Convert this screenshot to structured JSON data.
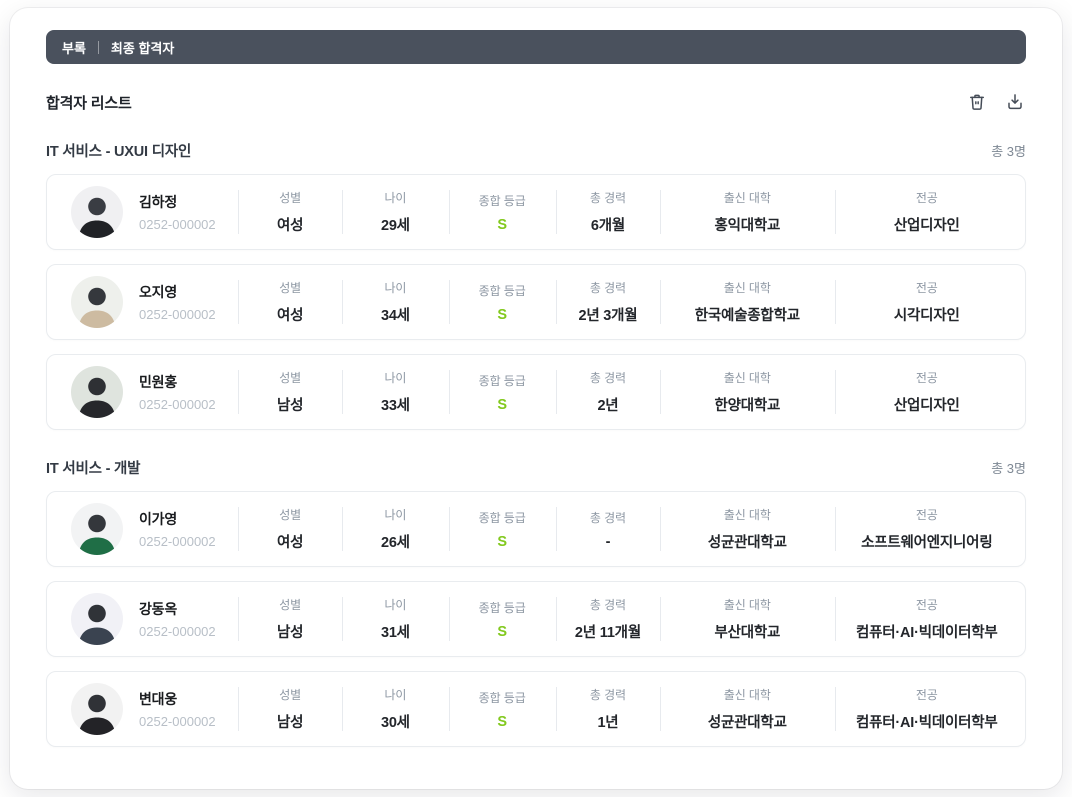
{
  "colors": {
    "topbar_bg": "#4a515d",
    "grade_accent": "#82c91e",
    "label_gray": "#8d97a3",
    "id_gray": "#b8bfc7"
  },
  "topbar": {
    "breadcrumb": "부록",
    "title": "최종 합격자"
  },
  "page": {
    "title": "합격자 리스트"
  },
  "toolbar": {
    "icons": [
      "trash-icon",
      "download-icon"
    ]
  },
  "fields": [
    {
      "key": "gender",
      "label": "성별",
      "grow": 104,
      "accent": false
    },
    {
      "key": "age",
      "label": "나이",
      "grow": 106,
      "accent": false
    },
    {
      "key": "grade",
      "label": "종합 등급",
      "grow": 107,
      "accent": true
    },
    {
      "key": "career",
      "label": "총 경력",
      "grow": 104,
      "accent": false
    },
    {
      "key": "university",
      "label": "출신 대학",
      "grow": 174,
      "accent": false
    },
    {
      "key": "major",
      "label": "전공",
      "grow": 184,
      "accent": false
    }
  ],
  "sections": [
    {
      "title": "IT 서비스 - UXUI 디자인",
      "count": "총 3명",
      "members": [
        {
          "name": "김하정",
          "id": "0252-000002",
          "gender": "여성",
          "age": "29세",
          "grade": "S",
          "career": "6개월",
          "university": "홍익대학교",
          "major": "산업디자인",
          "avatar": {
            "bg": "#f0f0f2",
            "head": "#3a3d43",
            "body": "#202226"
          }
        },
        {
          "name": "오지영",
          "id": "0252-000002",
          "gender": "여성",
          "age": "34세",
          "grade": "S",
          "career": "2년 3개월",
          "university": "한국예술종합학교",
          "major": "시각디자인",
          "avatar": {
            "bg": "#eef0ec",
            "head": "#35383d",
            "body": "#cdbba1"
          }
        },
        {
          "name": "민원홍",
          "id": "0252-000002",
          "gender": "남성",
          "age": "33세",
          "grade": "S",
          "career": "2년",
          "university": "한양대학교",
          "major": "산업디자인",
          "avatar": {
            "bg": "#dfe4de",
            "head": "#2e3034",
            "body": "#26272b"
          }
        }
      ]
    },
    {
      "title": "IT 서비스 - 개발",
      "count": "총 3명",
      "members": [
        {
          "name": "이가영",
          "id": "0252-000002",
          "gender": "여성",
          "age": "26세",
          "grade": "S",
          "career": "-",
          "university": "성균관대학교",
          "major": "소프트웨어엔지니어링",
          "avatar": {
            "bg": "#f2f3f4",
            "head": "#34373c",
            "body": "#1f6e46"
          }
        },
        {
          "name": "강동옥",
          "id": "0252-000002",
          "gender": "남성",
          "age": "31세",
          "grade": "S",
          "career": "2년 11개월",
          "university": "부산대학교",
          "major": "컴퓨터·AI·빅데이터학부",
          "avatar": {
            "bg": "#f1f1f6",
            "head": "#303338",
            "body": "#3a4350"
          }
        },
        {
          "name": "변대웅",
          "id": "0252-000002",
          "gender": "남성",
          "age": "30세",
          "grade": "S",
          "career": "1년",
          "university": "성균관대학교",
          "major": "컴퓨터·AI·빅데이터학부",
          "avatar": {
            "bg": "#f2f2f2",
            "head": "#303237",
            "body": "#232327"
          }
        }
      ]
    }
  ]
}
